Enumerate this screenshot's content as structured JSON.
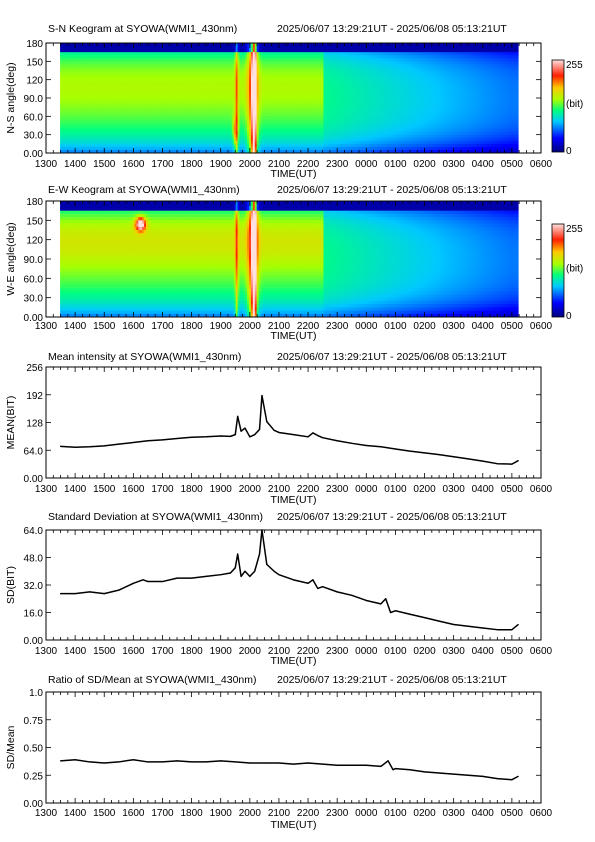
{
  "time_axis": {
    "ticks": [
      "1300",
      "1400",
      "1500",
      "1600",
      "1700",
      "1800",
      "1900",
      "2000",
      "2100",
      "2200",
      "2300",
      "0000",
      "0100",
      "0200",
      "0300",
      "0400",
      "0500",
      "0600"
    ],
    "xlabel": "TIME(UT)",
    "start": "2025-06-07T13:00:00Z",
    "end": "2025-06-08T06:00:00Z"
  },
  "colorbar": {
    "max": "255",
    "unit": "(bit)",
    "min": "0"
  },
  "chart_data": [
    {
      "type": "heatmap",
      "title": "S-N Keogram at SYOWA(WMI1_430nm)",
      "time_range": "2025/06/07 13:29:21UT - 2025/06/08 05:13:21UT",
      "ylabel": "N-S angle(deg)",
      "xlabel": "TIME(UT)",
      "yticks": [
        "0.00",
        "30.0",
        "60.0",
        "90.0",
        "120",
        "150",
        "180"
      ],
      "ylim": [
        0,
        180
      ],
      "colorscale": [
        "#00007f",
        "#0000ff",
        "#00c8ff",
        "#00ff80",
        "#c8ff00",
        "#ffc800",
        "#ff2000",
        "#ffe0e0"
      ],
      "colorbar": {
        "min": 0,
        "max": 255,
        "unit": "(bit)"
      }
    },
    {
      "type": "heatmap",
      "title": "E-W Keogram at SYOWA(WMI1_430nm)",
      "time_range": "2025/06/07 13:29:21UT - 2025/06/08 05:13:21UT",
      "ylabel": "W-E angle(deg)",
      "xlabel": "TIME(UT)",
      "yticks": [
        "0.00",
        "30.0",
        "60.0",
        "90.0",
        "120",
        "150",
        "180"
      ],
      "ylim": [
        0,
        180
      ],
      "colorscale": [
        "#00007f",
        "#0000ff",
        "#00c8ff",
        "#00ff80",
        "#c8ff00",
        "#ffc800",
        "#ff2000",
        "#ffe0e0"
      ],
      "colorbar": {
        "min": 0,
        "max": 255,
        "unit": "(bit)"
      }
    },
    {
      "type": "line",
      "title": "Mean intensity at SYOWA(WMI1_430nm)",
      "time_range": "2025/06/07 13:29:21UT - 2025/06/08 05:13:21UT",
      "ylabel": "MEAN(BIT)",
      "xlabel": "TIME(UT)",
      "yticks": [
        "0.00",
        "64.0",
        "128",
        "192",
        "256"
      ],
      "ylim": [
        0,
        256
      ],
      "series": [
        {
          "x": [
            "13:30",
            "14:00",
            "14:30",
            "15:00",
            "15:30",
            "16:00",
            "16:30",
            "17:00",
            "17:30",
            "18:00",
            "18:30",
            "19:00",
            "19:20",
            "19:30",
            "19:35",
            "19:42",
            "19:50",
            "20:00",
            "20:10",
            "20:20",
            "20:25",
            "20:35",
            "20:50",
            "21:00",
            "21:30",
            "22:00",
            "22:10",
            "22:20",
            "22:30",
            "23:00",
            "23:30",
            "00:00",
            "00:30",
            "01:00",
            "01:30",
            "02:00",
            "02:30",
            "03:00",
            "03:30",
            "04:00",
            "04:30",
            "05:00",
            "05:13"
          ],
          "values": [
            73,
            71,
            72,
            74,
            78,
            82,
            86,
            88,
            91,
            94,
            95,
            97,
            96,
            100,
            142,
            108,
            115,
            95,
            100,
            112,
            190,
            130,
            110,
            105,
            100,
            95,
            104,
            98,
            93,
            86,
            80,
            75,
            72,
            67,
            62,
            58,
            54,
            49,
            44,
            39,
            33,
            32,
            40
          ]
        }
      ]
    },
    {
      "type": "line",
      "title": "Standard Deviation at SYOWA(WMI1_430nm)",
      "time_range": "2025/06/07 13:29:21UT - 2025/06/08 05:13:21UT",
      "ylabel": "SD(BIT)",
      "xlabel": "TIME(UT)",
      "yticks": [
        "0.00",
        "16.0",
        "32.0",
        "48.0",
        "64.0"
      ],
      "ylim": [
        0,
        64
      ],
      "series": [
        {
          "x": [
            "13:30",
            "14:00",
            "14:30",
            "15:00",
            "15:30",
            "16:00",
            "16:20",
            "16:30",
            "17:00",
            "17:30",
            "18:00",
            "18:30",
            "19:00",
            "19:20",
            "19:30",
            "19:35",
            "19:42",
            "19:50",
            "20:00",
            "20:10",
            "20:20",
            "20:25",
            "20:35",
            "20:50",
            "21:00",
            "21:30",
            "22:00",
            "22:10",
            "22:20",
            "22:30",
            "23:00",
            "23:30",
            "00:00",
            "00:30",
            "00:40",
            "00:50",
            "01:00",
            "01:30",
            "02:00",
            "02:30",
            "03:00",
            "03:30",
            "04:00",
            "04:30",
            "05:00",
            "05:13"
          ],
          "values": [
            27,
            27,
            28,
            27,
            29,
            33,
            35,
            34,
            34,
            36,
            36,
            37,
            38,
            39,
            42,
            50,
            37,
            40,
            37,
            40,
            50,
            64,
            44,
            40,
            38,
            35,
            33,
            35,
            30,
            31,
            28,
            26,
            23,
            21,
            24,
            16,
            17,
            15,
            13,
            11,
            9,
            8,
            7,
            6,
            6,
            9
          ]
        }
      ]
    },
    {
      "type": "line",
      "title": "Ratio of SD/Mean at SYOWA(WMI1_430nm)",
      "time_range": "2025/06/07 13:29:21UT - 2025/06/08 05:13:21UT",
      "ylabel": "SD/Mean",
      "xlabel": "TIME(UT)",
      "yticks": [
        "0.00",
        "0.25",
        "0.50",
        "0.75",
        "1.0"
      ],
      "ylim": [
        0,
        1
      ],
      "series": [
        {
          "x": [
            "13:30",
            "14:00",
            "14:30",
            "15:00",
            "15:30",
            "16:00",
            "16:30",
            "17:00",
            "17:30",
            "18:00",
            "18:30",
            "19:00",
            "19:30",
            "20:00",
            "20:30",
            "21:00",
            "21:30",
            "22:00",
            "22:30",
            "23:00",
            "23:30",
            "00:00",
            "00:30",
            "00:45",
            "00:55",
            "01:00",
            "01:30",
            "02:00",
            "02:30",
            "03:00",
            "03:30",
            "04:00",
            "04:30",
            "05:00",
            "05:13"
          ],
          "values": [
            0.38,
            0.39,
            0.37,
            0.36,
            0.37,
            0.39,
            0.37,
            0.37,
            0.38,
            0.37,
            0.37,
            0.38,
            0.37,
            0.36,
            0.36,
            0.36,
            0.35,
            0.36,
            0.35,
            0.34,
            0.34,
            0.34,
            0.33,
            0.38,
            0.3,
            0.31,
            0.3,
            0.28,
            0.27,
            0.26,
            0.25,
            0.24,
            0.22,
            0.21,
            0.24
          ]
        }
      ]
    }
  ]
}
